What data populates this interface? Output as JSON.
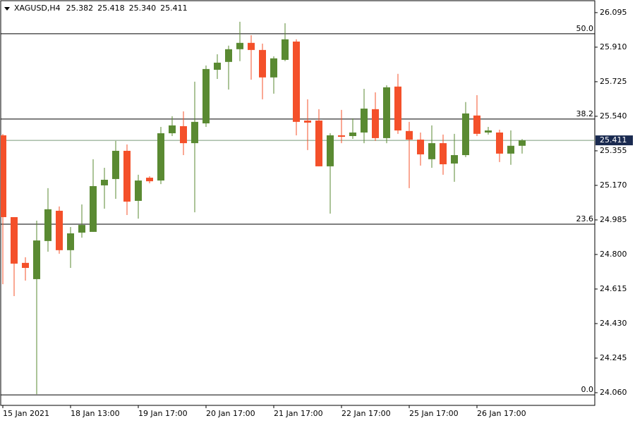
{
  "chart_data": {
    "type": "candlestick",
    "symbol": "XAGUSD,H4",
    "header_values": [
      "25.382",
      "25.418",
      "25.340",
      "25.411"
    ],
    "categories": [
      "15 Jan 2021",
      null,
      null,
      null,
      null,
      null,
      "18 Jan 13:00",
      null,
      null,
      null,
      null,
      null,
      "19 Jan 17:00",
      null,
      null,
      null,
      null,
      null,
      "20 Jan 17:00",
      null,
      null,
      null,
      null,
      null,
      "21 Jan 17:00",
      null,
      null,
      null,
      null,
      null,
      "22 Jan 17:00",
      null,
      null,
      null,
      null,
      null,
      "25 Jan 17:00",
      null,
      null,
      null,
      null,
      null,
      "26 Jan 17:00",
      null,
      null,
      null,
      null
    ],
    "open": [
      25.438,
      25.0,
      24.755,
      24.668,
      24.872,
      25.034,
      24.823,
      24.917,
      24.921,
      25.17,
      25.204,
      25.355,
      25.087,
      25.211,
      25.196,
      25.449,
      25.487,
      25.396,
      25.502,
      25.789,
      25.831,
      25.899,
      25.933,
      25.895,
      25.748,
      25.842,
      25.94,
      25.517,
      25.517,
      25.272,
      25.438,
      25.434,
      25.453,
      25.578,
      25.423,
      25.699,
      25.461,
      25.415,
      25.31,
      25.396,
      25.287,
      25.332,
      25.544,
      25.453,
      25.453,
      25.34,
      25.382
    ],
    "high": [
      25.445,
      25.0,
      24.785,
      24.981,
      25.155,
      25.057,
      24.947,
      25.068,
      25.31,
      25.264,
      25.408,
      25.389,
      25.227,
      25.219,
      25.483,
      25.54,
      25.566,
      25.725,
      25.812,
      25.872,
      25.918,
      26.046,
      25.974,
      25.929,
      25.861,
      26.038,
      25.952,
      25.631,
      25.578,
      25.449,
      25.574,
      25.529,
      25.687,
      25.668,
      25.706,
      25.767,
      25.51,
      25.453,
      25.491,
      25.442,
      25.446,
      25.616,
      25.653,
      25.483,
      25.468,
      25.464,
      25.418
    ],
    "low": [
      24.641,
      24.577,
      24.66,
      24.052,
      24.815,
      24.804,
      24.728,
      24.89,
      24.921,
      25.045,
      25.098,
      25.011,
      24.992,
      25.181,
      25.177,
      25.434,
      25.332,
      25.026,
      25.483,
      25.74,
      25.683,
      25.835,
      25.736,
      25.631,
      25.661,
      25.835,
      25.438,
      25.359,
      25.272,
      25.019,
      25.396,
      25.419,
      25.396,
      25.408,
      25.396,
      25.446,
      25.155,
      25.276,
      25.264,
      25.227,
      25.189,
      25.321,
      25.434,
      25.442,
      25.295,
      25.28,
      25.34
    ],
    "close": [
      25.0,
      24.751,
      24.728,
      24.875,
      25.042,
      24.823,
      24.913,
      24.958,
      25.166,
      25.2,
      25.355,
      25.083,
      25.196,
      25.192,
      25.449,
      25.491,
      25.396,
      25.51,
      25.793,
      25.827,
      25.899,
      25.933,
      25.895,
      25.748,
      25.85,
      25.952,
      25.51,
      25.506,
      25.272,
      25.438,
      25.43,
      25.453,
      25.581,
      25.423,
      25.695,
      25.464,
      25.415,
      25.336,
      25.396,
      25.283,
      25.332,
      25.555,
      25.446,
      25.464,
      25.34,
      25.382,
      25.411
    ],
    "up_color": "#5a8a32",
    "down_color": "#f4502a",
    "ylim": [
      23.992,
      26.155
    ],
    "yticks": [
      26.095,
      {
        "value": 25.91,
        "label": "25.910"
      },
      25.725,
      {
        "value": 25.54,
        "label": "25.540"
      },
      25.355,
      {
        "value": 25.17,
        "label": "25.170"
      },
      24.985,
      {
        "value": 24.8,
        "label": "24.800"
      },
      24.615,
      {
        "value": 24.43,
        "label": "24.430"
      },
      24.245,
      {
        "value": 24.06,
        "label": "24.060"
      }
    ],
    "fib_levels": [
      {
        "value": 25.982,
        "label": "50.0"
      },
      {
        "value": 25.525,
        "label": "38.2"
      },
      {
        "value": 24.962,
        "label": "23.6"
      },
      {
        "value": 24.048,
        "label": "0.0"
      }
    ],
    "current_price": 25.411
  }
}
